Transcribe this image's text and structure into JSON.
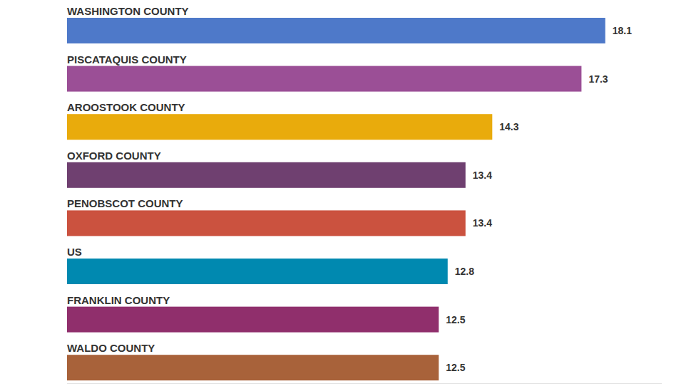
{
  "chart_data": {
    "type": "bar",
    "orientation": "horizontal",
    "categories": [
      "WASHINGTON COUNTY",
      "PISCATAQUIS COUNTY",
      "AROOSTOOK COUNTY",
      "OXFORD COUNTY",
      "PENOBSCOT COUNTY",
      "US",
      "FRANKLIN COUNTY",
      "WALDO COUNTY"
    ],
    "values": [
      18.1,
      17.3,
      14.3,
      13.4,
      13.4,
      12.8,
      12.5,
      12.5
    ],
    "colors": [
      "#4e79c9",
      "#9b4f96",
      "#e9ab0c",
      "#6f4070",
      "#cb523f",
      "#0089b0",
      "#902f6c",
      "#a8623a"
    ],
    "xlim": [
      0,
      20
    ],
    "xticks": [],
    "grid": false,
    "data_labels": true,
    "tick_labels": false
  }
}
